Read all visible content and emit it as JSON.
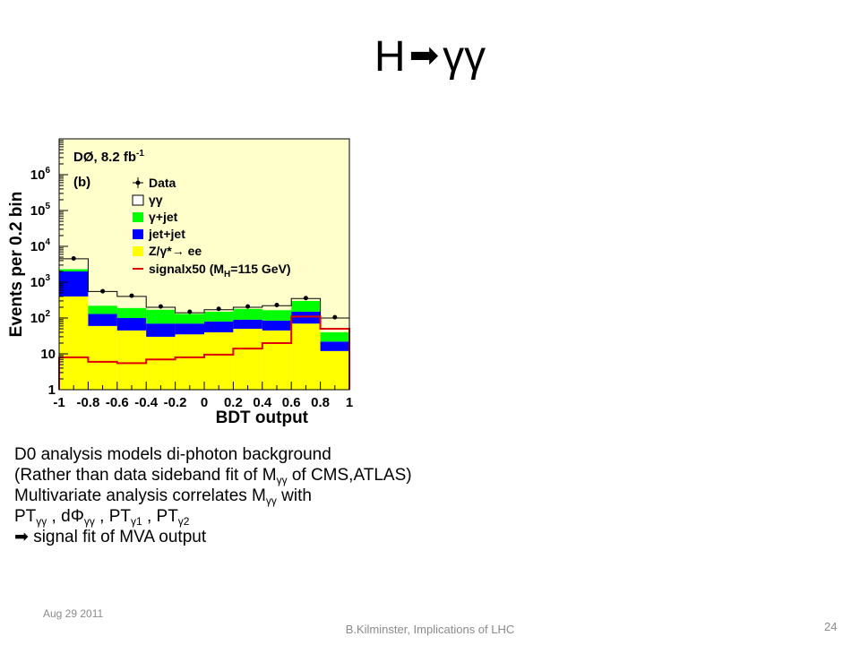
{
  "slide": {
    "title_left": "H",
    "title_arrow": "➡",
    "title_right": "γγ"
  },
  "text_block": {
    "line1": "D0 analysis models di-photon background",
    "line2_pre": "(Rather than data sideband fit of M",
    "line2_sub": "γγ",
    "line2_post": " of CMS,ATLAS)",
    "line3_pre": "Multivariate analysis correlates M",
    "line3_sub": "γγ",
    "line3_post": " with",
    "line4": {
      "pt": "PT",
      "pt_sub": "γγ",
      "sep": " , ",
      "dphi": "dΦ",
      "dphi_sub": "γγ",
      "pt1": "PT",
      "pt1_sub": "γ1",
      "pt2": "PT",
      "pt2_sub": "γ2"
    },
    "line5_arrow": "➡",
    "line5_text": " signal fit of MVA output"
  },
  "footer": {
    "date": "Aug 29 2011",
    "author": "B.Kilminster, Implications of LHC",
    "page": "24"
  },
  "chart_data": {
    "type": "bar",
    "subtype": "stacked-histogram",
    "ylog": true,
    "xlim": [
      -1,
      1
    ],
    "ylim_exp": [
      0,
      7
    ],
    "xlabel": "BDT output",
    "ylabel": "Events per 0.2 bin",
    "xticks": [
      "-1",
      "-0.8",
      "-0.6",
      "-0.4",
      "-0.2",
      "0",
      "0.2",
      "0.4",
      "0.6",
      "0.8",
      "1"
    ],
    "yticks": [
      {
        "value": 1,
        "label": "1",
        "exp": ""
      },
      {
        "value": 10,
        "label": "10",
        "exp": ""
      },
      {
        "value": 100,
        "label": "10",
        "exp": "2"
      },
      {
        "value": 1000,
        "label": "10",
        "exp": "3"
      },
      {
        "value": 10000,
        "label": "10",
        "exp": "4"
      },
      {
        "value": 100000,
        "label": "10",
        "exp": "5"
      },
      {
        "value": 1000000,
        "label": "10",
        "exp": "6"
      }
    ],
    "annotation": {
      "experiment": "DØ, 8.2 fb",
      "exp": "-1",
      "panel": "(b)"
    },
    "bin_edges": [
      -1,
      -0.8,
      -0.6,
      -0.4,
      -0.2,
      0,
      0.2,
      0.4,
      0.6,
      0.8,
      1
    ],
    "series": [
      {
        "name": "Z/γ*→ ee",
        "color": "#ffff00",
        "values": [
          400,
          60,
          45,
          30,
          35,
          40,
          50,
          45,
          70,
          12
        ]
      },
      {
        "name": "jet+jet",
        "color": "#0000ff",
        "values": [
          1600,
          70,
          55,
          40,
          35,
          40,
          40,
          40,
          80,
          10
        ]
      },
      {
        "name": "γ+jet",
        "color": "#00ff00",
        "values": [
          300,
          90,
          90,
          100,
          60,
          70,
          90,
          80,
          150,
          18
        ]
      }
    ],
    "total_mc": [
      4500,
      550,
      400,
      200,
      140,
      170,
      200,
      220,
      350,
      100
    ],
    "data": [
      4600,
      560,
      420,
      210,
      150,
      180,
      210,
      230,
      360,
      105
    ],
    "signal": {
      "name": "signalx50 (M",
      "sub": "H",
      "suffix": "=115 GeV)",
      "color": "#e00000",
      "values": [
        8,
        6,
        5.5,
        7,
        8,
        9.5,
        14,
        20,
        110,
        50
      ]
    },
    "legend": {
      "position": "top-center",
      "data": "Data",
      "gg": "γγ",
      "gjet": "γ+jet",
      "jetjet": "jet+jet",
      "zee_pre": "Z/γ*",
      "zee_arrow": "→",
      "zee_post": " ee"
    }
  }
}
